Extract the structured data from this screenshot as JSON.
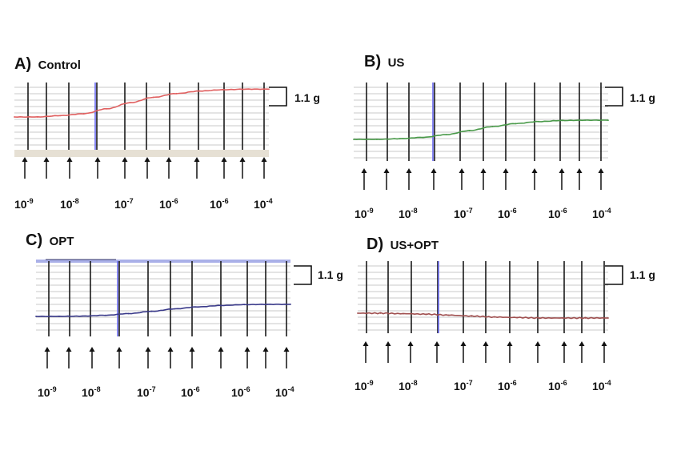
{
  "figure": {
    "panels": [
      {
        "letter": "A)",
        "name": "Control",
        "trace_color": "#e06060",
        "scale_label": "1.1 g",
        "tick_labels": [
          {
            "base": "10",
            "exp": "-9"
          },
          {
            "base": "10",
            "exp": "-8"
          },
          {
            "base": "10",
            "exp": "-7"
          },
          {
            "base": "10",
            "exp": "-6"
          },
          {
            "base": "10",
            "exp": "-6"
          },
          {
            "base": "10",
            "exp": "-4"
          }
        ]
      },
      {
        "letter": "B)",
        "name": "US",
        "trace_color": "#4a9a4a",
        "scale_label": "1.1 g",
        "tick_labels": [
          {
            "base": "10",
            "exp": "-9"
          },
          {
            "base": "10",
            "exp": "-8"
          },
          {
            "base": "10",
            "exp": "-7"
          },
          {
            "base": "10",
            "exp": "-6"
          },
          {
            "base": "10",
            "exp": "-6"
          },
          {
            "base": "10",
            "exp": "-4"
          }
        ]
      },
      {
        "letter": "C)",
        "name": "OPT",
        "trace_color": "#3a3a8a",
        "scale_label": "1.1 g",
        "tick_labels": [
          {
            "base": "10",
            "exp": "-9"
          },
          {
            "base": "10",
            "exp": "-8"
          },
          {
            "base": "10",
            "exp": "-7"
          },
          {
            "base": "10",
            "exp": "-6"
          },
          {
            "base": "10",
            "exp": "-6"
          },
          {
            "base": "10",
            "exp": "-4"
          }
        ]
      },
      {
        "letter": "D)",
        "name": "US+OPT",
        "trace_color": "#a05050",
        "scale_label": "1.1 g",
        "tick_labels": [
          {
            "base": "10",
            "exp": "-9"
          },
          {
            "base": "10",
            "exp": "-8"
          },
          {
            "base": "10",
            "exp": "-7"
          },
          {
            "base": "10",
            "exp": "-6"
          },
          {
            "base": "10",
            "exp": "-6"
          },
          {
            "base": "10",
            "exp": "-4"
          }
        ]
      }
    ]
  },
  "chart_data": [
    {
      "type": "line",
      "title": "Control",
      "scale_bar": "1.1 g",
      "x": [
        0,
        1,
        2,
        3,
        4,
        5,
        6,
        7,
        8,
        9,
        10,
        11
      ],
      "series": [
        {
          "values": [
            0.0,
            0.0,
            0.05,
            0.12,
            0.3,
            0.52,
            0.72,
            0.86,
            0.95,
            1.0,
            1.02,
            1.02
          ]
        }
      ],
      "ylim": [
        -0.1,
        1.2
      ]
    },
    {
      "type": "line",
      "title": "US",
      "scale_bar": "1.1 g",
      "x": [
        0,
        1,
        2,
        3,
        4,
        5,
        6,
        7,
        8,
        9,
        10,
        11
      ],
      "series": [
        {
          "values": [
            0.0,
            0.0,
            0.02,
            0.06,
            0.14,
            0.26,
            0.38,
            0.47,
            0.53,
            0.56,
            0.57,
            0.57
          ]
        }
      ],
      "ylim": [
        -0.1,
        1.2
      ]
    },
    {
      "type": "line",
      "title": "OPT",
      "scale_bar": "1.1 g",
      "x": [
        0,
        1,
        2,
        3,
        4,
        5,
        6,
        7,
        8,
        9,
        10,
        11
      ],
      "series": [
        {
          "values": [
            0.0,
            0.0,
            0.01,
            0.04,
            0.1,
            0.18,
            0.27,
            0.34,
            0.39,
            0.42,
            0.43,
            0.43
          ]
        }
      ],
      "ylim": [
        -0.1,
        1.2
      ]
    },
    {
      "type": "line",
      "title": "US+OPT",
      "scale_bar": "1.1 g",
      "x": [
        0,
        1,
        2,
        3,
        4,
        5,
        6,
        7,
        8,
        9,
        10,
        11
      ],
      "series": [
        {
          "values": [
            0.0,
            0.0,
            -0.01,
            -0.02,
            -0.04,
            -0.06,
            -0.08,
            -0.09,
            -0.1,
            -0.1,
            -0.1,
            -0.1
          ]
        }
      ],
      "ylim": [
        -0.1,
        1.2
      ]
    }
  ]
}
